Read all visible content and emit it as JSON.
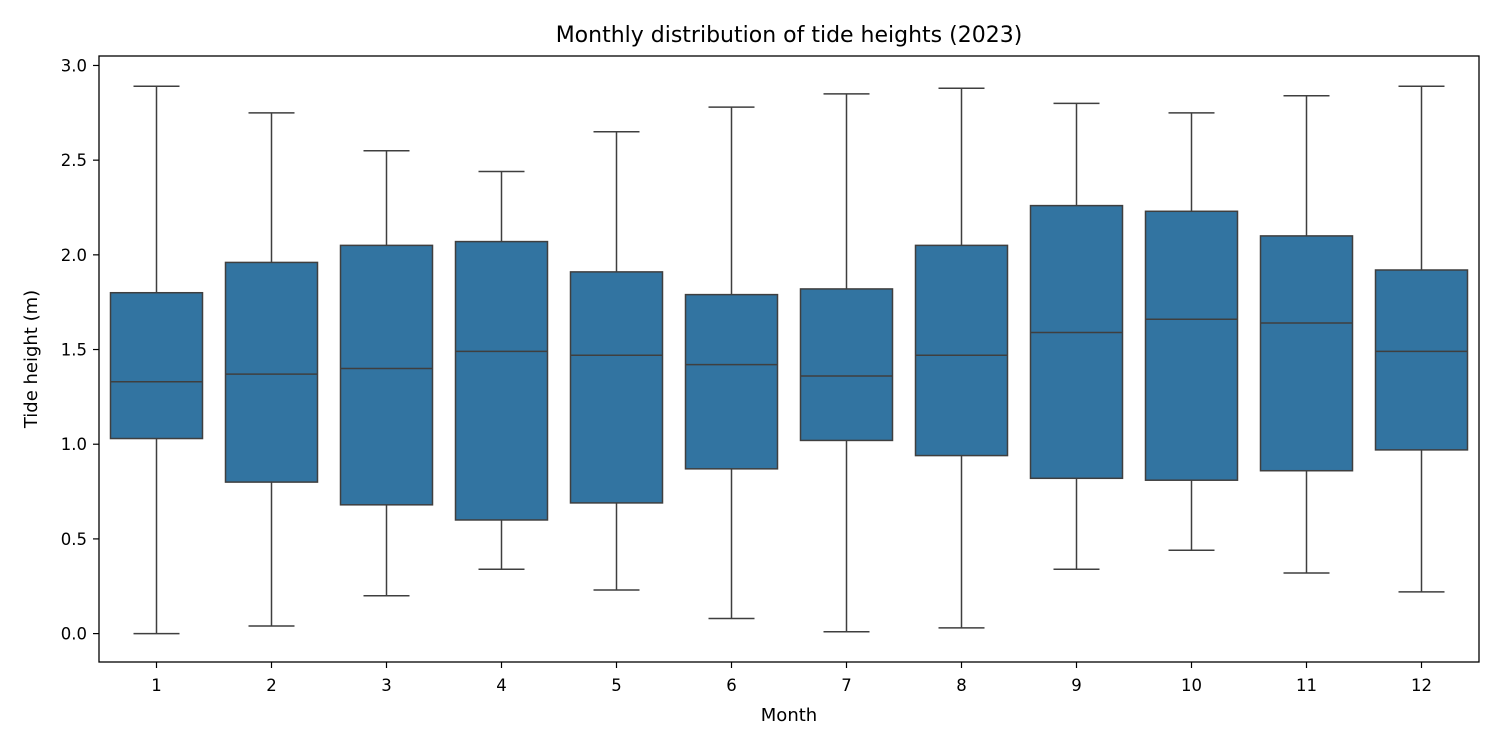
{
  "chart_data": {
    "type": "box",
    "title": "Monthly distribution of tide heights (2023)",
    "xlabel": "Month",
    "ylabel": "Tide height (m)",
    "ylim": [
      -0.15,
      3.05
    ],
    "yticks": [
      "0.0",
      "0.5",
      "1.0",
      "1.5",
      "2.0",
      "2.5",
      "3.0"
    ],
    "ytick_values": [
      0.0,
      0.5,
      1.0,
      1.5,
      2.0,
      2.5,
      3.0
    ],
    "grid": false,
    "box_color": "#3274a1",
    "line_color": "#3f3f3f",
    "categories": [
      "1",
      "2",
      "3",
      "4",
      "5",
      "6",
      "7",
      "8",
      "9",
      "10",
      "11",
      "12"
    ],
    "boxes": [
      {
        "whislo": 0.0,
        "q1": 1.03,
        "med": 1.33,
        "q3": 1.8,
        "whishi": 2.89
      },
      {
        "whislo": 0.04,
        "q1": 0.8,
        "med": 1.37,
        "q3": 1.96,
        "whishi": 2.75
      },
      {
        "whislo": 0.2,
        "q1": 0.68,
        "med": 1.4,
        "q3": 2.05,
        "whishi": 2.55
      },
      {
        "whislo": 0.34,
        "q1": 0.6,
        "med": 1.49,
        "q3": 2.07,
        "whishi": 2.44
      },
      {
        "whislo": 0.23,
        "q1": 0.69,
        "med": 1.47,
        "q3": 1.91,
        "whishi": 2.65
      },
      {
        "whislo": 0.08,
        "q1": 0.87,
        "med": 1.42,
        "q3": 1.79,
        "whishi": 2.78
      },
      {
        "whislo": 0.01,
        "q1": 1.02,
        "med": 1.36,
        "q3": 1.82,
        "whishi": 2.85
      },
      {
        "whislo": 0.03,
        "q1": 0.94,
        "med": 1.47,
        "q3": 2.05,
        "whishi": 2.88
      },
      {
        "whislo": 0.34,
        "q1": 0.82,
        "med": 1.59,
        "q3": 2.26,
        "whishi": 2.8
      },
      {
        "whislo": 0.44,
        "q1": 0.81,
        "med": 1.66,
        "q3": 2.23,
        "whishi": 2.75
      },
      {
        "whislo": 0.32,
        "q1": 0.86,
        "med": 1.64,
        "q3": 2.1,
        "whishi": 2.84
      },
      {
        "whislo": 0.22,
        "q1": 0.97,
        "med": 1.49,
        "q3": 1.92,
        "whishi": 2.89
      }
    ]
  }
}
